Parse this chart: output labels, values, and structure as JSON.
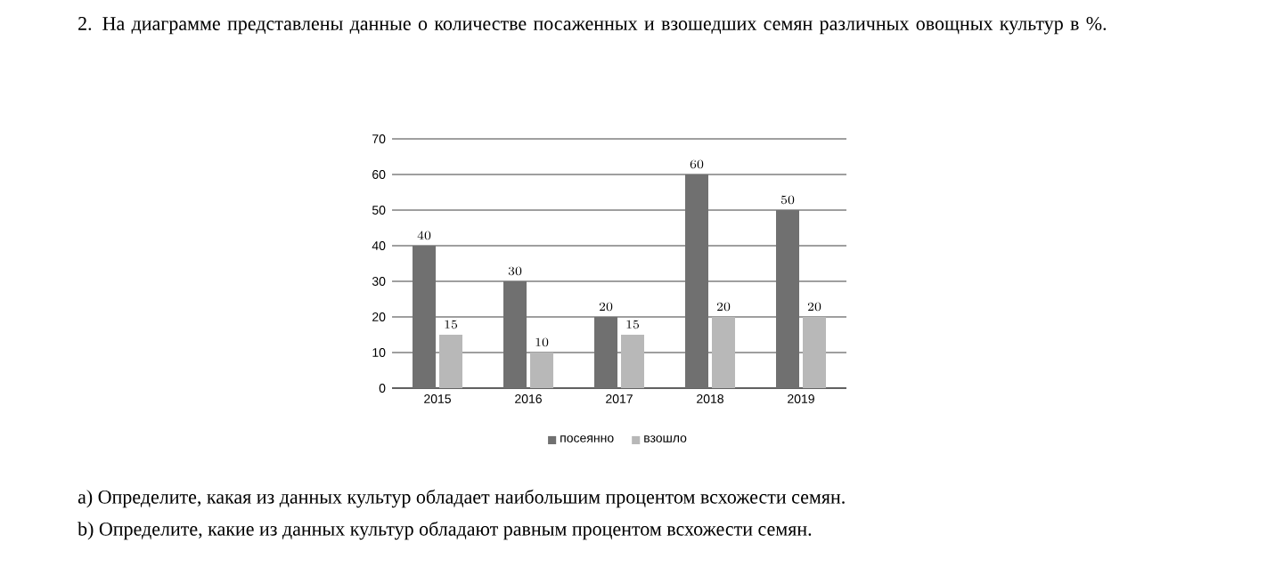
{
  "chart_data": {
    "type": "bar",
    "title": "2. На диаграмме представлены данные о количестве посаженных и взошедших семян различных овощных культур в %.",
    "categories": [
      "2015",
      "2016",
      "2017",
      "2018",
      "2019"
    ],
    "series": [
      {
        "name": "посеянно",
        "color": "#707070",
        "values": [
          40,
          30,
          20,
          60,
          50
        ]
      },
      {
        "name": "взошло",
        "color": "#b8b8b8",
        "values": [
          15,
          10,
          15,
          20,
          20
        ]
      }
    ],
    "ylim": [
      0,
      70
    ],
    "yticks": [
      0,
      10,
      20,
      30,
      40,
      50,
      60,
      70
    ],
    "grid": "y",
    "legend": "bottom",
    "data_labels": true,
    "annotations": [
      "a) Определите, какая из данных культур обладает наибольшим процентом всхожести семян.",
      "b) Определите, какие из данных культур обладают равным процентом всхожести семян."
    ]
  }
}
